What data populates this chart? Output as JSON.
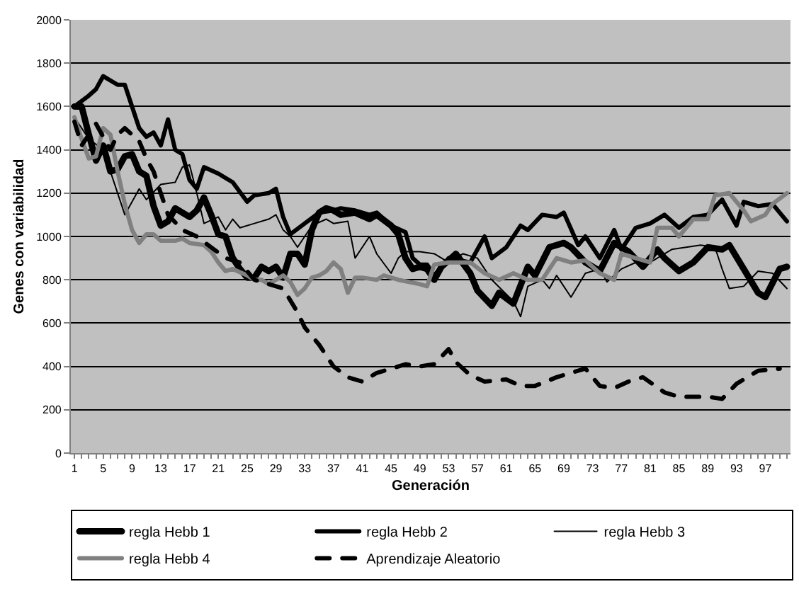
{
  "chart_data": {
    "type": "line",
    "xlabel": "Generación",
    "ylabel": "Genes con variabilidad",
    "xlim": [
      0.5,
      100.5
    ],
    "xticks": [
      1,
      5,
      9,
      13,
      17,
      21,
      25,
      29,
      33,
      37,
      41,
      45,
      49,
      53,
      57,
      61,
      65,
      69,
      73,
      77,
      81,
      85,
      89,
      93,
      97
    ],
    "ylim": [
      0,
      2000
    ],
    "yticks": [
      0,
      200,
      400,
      600,
      800,
      1000,
      1200,
      1400,
      1600,
      1800,
      2000
    ],
    "grid": "y",
    "legend": "bottom",
    "marker": "none",
    "series": [
      {
        "name": "regla Hebb 1",
        "color": "#000000",
        "line_style": "solid",
        "x": [
          1,
          2,
          3,
          4,
          5,
          6,
          7,
          8,
          9,
          10,
          11,
          12,
          13,
          14,
          15,
          16,
          17,
          18,
          19,
          20,
          21,
          22,
          23,
          24,
          25,
          26,
          27,
          28,
          29,
          30,
          31,
          32,
          33,
          34,
          35,
          36,
          37,
          38,
          40,
          42,
          43,
          45,
          46,
          47,
          48,
          49,
          50,
          51,
          52,
          54,
          56,
          57,
          59,
          60,
          62,
          64,
          65,
          67,
          69,
          70,
          72,
          74,
          76,
          78,
          80,
          82,
          83,
          85,
          87,
          89,
          91,
          92,
          94,
          96,
          97,
          99,
          100
        ],
        "values": [
          1600,
          1600,
          1470,
          1350,
          1420,
          1300,
          1310,
          1370,
          1380,
          1300,
          1280,
          1140,
          1050,
          1070,
          1130,
          1110,
          1090,
          1120,
          1180,
          1100,
          1010,
          1000,
          900,
          850,
          810,
          810,
          860,
          840,
          860,
          810,
          920,
          920,
          870,
          1030,
          1110,
          1130,
          1120,
          1100,
          1110,
          1080,
          1100,
          1050,
          1010,
          900,
          850,
          860,
          850,
          800,
          860,
          920,
          830,
          750,
          680,
          740,
          690,
          860,
          820,
          950,
          970,
          950,
          880,
          840,
          970,
          930,
          860,
          940,
          900,
          840,
          880,
          950,
          940,
          960,
          850,
          740,
          720,
          850,
          860
        ]
      },
      {
        "name": "regla Hebb 2",
        "color": "#000000",
        "line_style": "solid",
        "x": [
          1,
          3,
          4,
          5,
          7,
          8,
          10,
          11,
          12,
          13,
          14,
          15,
          16,
          17,
          18,
          19,
          21,
          23,
          25,
          26,
          28,
          29,
          30,
          31,
          33,
          35,
          37,
          38,
          40,
          42,
          43,
          45,
          47,
          48,
          49,
          50,
          51,
          53,
          56,
          58,
          59,
          61,
          63,
          64,
          66,
          68,
          69,
          71,
          72,
          74,
          76,
          77,
          79,
          81,
          83,
          85,
          87,
          89,
          91,
          93,
          94,
          96,
          98,
          100
        ],
        "values": [
          1600,
          1650,
          1680,
          1740,
          1700,
          1700,
          1500,
          1460,
          1480,
          1420,
          1540,
          1400,
          1380,
          1260,
          1220,
          1320,
          1290,
          1250,
          1160,
          1190,
          1200,
          1220,
          1090,
          1010,
          1060,
          1110,
          1120,
          1130,
          1120,
          1100,
          1110,
          1050,
          1020,
          900,
          870,
          870,
          820,
          900,
          880,
          1000,
          900,
          950,
          1050,
          1030,
          1100,
          1090,
          1110,
          960,
          1000,
          900,
          1030,
          940,
          1040,
          1060,
          1100,
          1040,
          1090,
          1100,
          1170,
          1050,
          1160,
          1140,
          1150,
          1070
        ]
      },
      {
        "name": "regla Hebb 3",
        "color": "#000000",
        "line_style": "solid",
        "x": [
          1,
          3,
          5,
          6,
          8,
          10,
          11,
          13,
          15,
          16,
          17,
          18,
          19,
          21,
          22,
          23,
          24,
          26,
          28,
          29,
          30,
          31,
          32,
          34,
          36,
          37,
          39,
          40,
          42,
          43,
          45,
          46,
          47,
          49,
          51,
          53,
          55,
          57,
          59,
          62,
          63,
          64,
          66,
          67,
          68,
          70,
          72,
          74,
          75,
          77,
          79,
          81,
          84,
          86,
          88,
          90,
          91,
          92,
          94,
          96,
          98,
          100
        ],
        "values": [
          1550,
          1450,
          1400,
          1300,
          1100,
          1220,
          1170,
          1240,
          1250,
          1320,
          1330,
          1200,
          1060,
          1090,
          1030,
          1080,
          1040,
          1060,
          1080,
          1100,
          1030,
          1000,
          950,
          1050,
          1080,
          1060,
          1070,
          900,
          1000,
          920,
          830,
          900,
          930,
          930,
          920,
          880,
          920,
          900,
          800,
          700,
          630,
          770,
          800,
          760,
          820,
          720,
          830,
          850,
          790,
          850,
          880,
          880,
          940,
          950,
          960,
          950,
          850,
          760,
          770,
          840,
          830,
          760
        ]
      },
      {
        "name": "regla Hebb 4",
        "color": "#808080",
        "line_style": "solid",
        "x": [
          1,
          2,
          3,
          4,
          5,
          6,
          7,
          8,
          9,
          10,
          11,
          12,
          13,
          15,
          16,
          17,
          19,
          20,
          21,
          22,
          23,
          25,
          26,
          27,
          28,
          29,
          30,
          31,
          32,
          33,
          34,
          35,
          36,
          37,
          38,
          39,
          40,
          41,
          43,
          44,
          46,
          49,
          50,
          51,
          53,
          56,
          58,
          60,
          62,
          64,
          66,
          68,
          70,
          72,
          74,
          76,
          77,
          79,
          81,
          82,
          84,
          85,
          87,
          89,
          90,
          92,
          94,
          95,
          97,
          98,
          100
        ],
        "values": [
          1550,
          1450,
          1360,
          1370,
          1500,
          1470,
          1300,
          1150,
          1030,
          970,
          1010,
          1010,
          980,
          980,
          990,
          970,
          960,
          930,
          880,
          840,
          850,
          820,
          800,
          800,
          780,
          800,
          820,
          790,
          730,
          760,
          810,
          820,
          840,
          880,
          850,
          740,
          810,
          810,
          800,
          820,
          800,
          780,
          770,
          870,
          880,
          880,
          830,
          800,
          830,
          800,
          800,
          900,
          880,
          890,
          830,
          800,
          920,
          900,
          880,
          1040,
          1040,
          1000,
          1080,
          1080,
          1190,
          1200,
          1120,
          1070,
          1100,
          1150,
          1200
        ]
      },
      {
        "name": "Aprendizaje Aleatorio",
        "color": "#000000",
        "line_style": "dashed",
        "x": [
          1,
          2,
          4,
          6,
          7,
          8,
          10,
          11,
          12,
          14,
          16,
          18,
          20,
          22,
          24,
          26,
          28,
          30,
          32,
          33,
          35,
          37,
          39,
          41,
          43,
          45,
          47,
          49,
          51,
          53,
          54,
          56,
          58,
          61,
          63,
          65,
          68,
          70,
          72,
          74,
          76,
          78,
          80,
          83,
          85,
          89,
          91,
          93,
          96,
          99
        ],
        "values": [
          1530,
          1420,
          1520,
          1400,
          1470,
          1500,
          1440,
          1360,
          1300,
          1100,
          1030,
          1000,
          950,
          900,
          880,
          800,
          780,
          760,
          650,
          580,
          500,
          400,
          350,
          330,
          370,
          390,
          410,
          400,
          410,
          480,
          420,
          360,
          330,
          340,
          310,
          310,
          350,
          370,
          390,
          310,
          300,
          330,
          350,
          280,
          260,
          260,
          250,
          320,
          380,
          390
        ]
      }
    ]
  }
}
